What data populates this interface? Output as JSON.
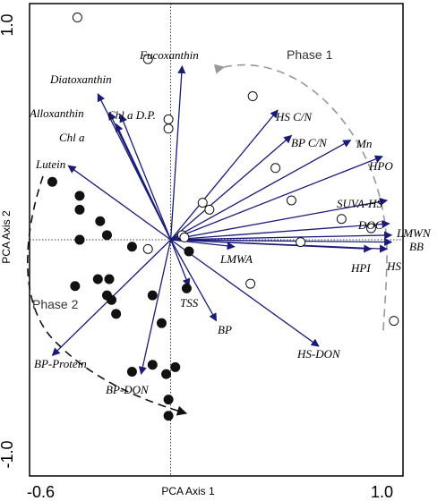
{
  "chart_data": {
    "type": "scatter",
    "title": "",
    "xlabel": "PCA Axis 1",
    "ylabel": "PCA Axis 2",
    "xlim": [
      -0.62,
      1.02
    ],
    "ylim": [
      -1.02,
      1.02
    ],
    "x_ticks": [
      "-0.6",
      "1.0"
    ],
    "y_ticks": [
      "1.0",
      "-1.0"
    ],
    "reference_lines": {
      "x": 0,
      "y": 0
    },
    "phase_labels": [
      "Phase 1",
      "Phase 2"
    ],
    "open_points": [
      {
        "x": -0.41,
        "y": 0.96
      },
      {
        "x": -0.1,
        "y": 0.78
      },
      {
        "x": 0.36,
        "y": 0.62
      },
      {
        "x": -0.01,
        "y": 0.52
      },
      {
        "x": -0.01,
        "y": 0.48
      },
      {
        "x": 0.46,
        "y": 0.31
      },
      {
        "x": 0.14,
        "y": 0.16
      },
      {
        "x": 0.17,
        "y": 0.13
      },
      {
        "x": 0.53,
        "y": 0.17
      },
      {
        "x": 0.75,
        "y": 0.09
      },
      {
        "x": 0.05,
        "y": 0.02
      },
      {
        "x": 0.06,
        "y": 0.01
      },
      {
        "x": 0.88,
        "y": 0.05
      },
      {
        "x": -0.4,
        "y": 0.0
      },
      {
        "x": -0.1,
        "y": -0.04
      },
      {
        "x": 0.57,
        "y": -0.01
      },
      {
        "x": 0.35,
        "y": -0.19
      },
      {
        "x": 0.98,
        "y": -0.35
      }
    ],
    "filled_points": [
      {
        "x": -0.52,
        "y": 0.25
      },
      {
        "x": -0.4,
        "y": 0.19
      },
      {
        "x": -0.4,
        "y": 0.13
      },
      {
        "x": -0.31,
        "y": 0.08
      },
      {
        "x": -0.4,
        "y": 0.0
      },
      {
        "x": -0.28,
        "y": 0.02
      },
      {
        "x": -0.17,
        "y": -0.03
      },
      {
        "x": 0.08,
        "y": -0.05
      },
      {
        "x": -0.32,
        "y": -0.17
      },
      {
        "x": -0.27,
        "y": -0.17
      },
      {
        "x": -0.42,
        "y": -0.2
      },
      {
        "x": -0.28,
        "y": -0.24
      },
      {
        "x": -0.26,
        "y": -0.26
      },
      {
        "x": -0.08,
        "y": -0.24
      },
      {
        "x": 0.07,
        "y": -0.21
      },
      {
        "x": -0.24,
        "y": -0.32
      },
      {
        "x": -0.04,
        "y": -0.36
      },
      {
        "x": -0.08,
        "y": -0.54
      },
      {
        "x": -0.02,
        "y": -0.58
      },
      {
        "x": 0.02,
        "y": -0.55
      },
      {
        "x": -0.17,
        "y": -0.57
      },
      {
        "x": -0.01,
        "y": -0.69
      },
      {
        "x": -0.01,
        "y": -0.76
      }
    ],
    "vectors": [
      {
        "label": "Fucoxanthin",
        "x": 0.05,
        "y": 0.75
      },
      {
        "label": "Diatoxanthin",
        "x": -0.32,
        "y": 0.63
      },
      {
        "label": "Alloxanthin",
        "x": -0.27,
        "y": 0.55
      },
      {
        "label": "Chl a D.P.",
        "x": -0.22,
        "y": 0.54
      },
      {
        "label": "Chl a",
        "x": -0.24,
        "y": 0.5
      },
      {
        "label": "Lutein",
        "x": -0.45,
        "y": 0.32
      },
      {
        "label": "HS C/N",
        "x": 0.47,
        "y": 0.56
      },
      {
        "label": "BP C/N",
        "x": 0.53,
        "y": 0.45
      },
      {
        "label": "Mn",
        "x": 0.79,
        "y": 0.43
      },
      {
        "label": "HPO",
        "x": 0.93,
        "y": 0.36
      },
      {
        "label": "SUVA-HS",
        "x": 0.95,
        "y": 0.17
      },
      {
        "label": "DOC",
        "x": 0.96,
        "y": 0.07
      },
      {
        "label": "LMWN",
        "x": 0.97,
        "y": 0.02
      },
      {
        "label": "BB",
        "x": 0.97,
        "y": -0.01
      },
      {
        "label": "HS",
        "x": 0.95,
        "y": -0.04
      },
      {
        "label": "HPI",
        "x": 0.88,
        "y": -0.04
      },
      {
        "label": "LMWA",
        "x": 0.28,
        "y": -0.03
      },
      {
        "label": "HS-DON",
        "x": 0.65,
        "y": -0.46
      },
      {
        "label": "BP",
        "x": 0.2,
        "y": -0.35
      },
      {
        "label": "TSS",
        "x": 0.08,
        "y": -0.2
      },
      {
        "label": "BP-Protein",
        "x": -0.52,
        "y": -0.5
      },
      {
        "label": "BP-DON",
        "x": -0.13,
        "y": -0.58
      }
    ],
    "grid": false,
    "legend": "none"
  }
}
